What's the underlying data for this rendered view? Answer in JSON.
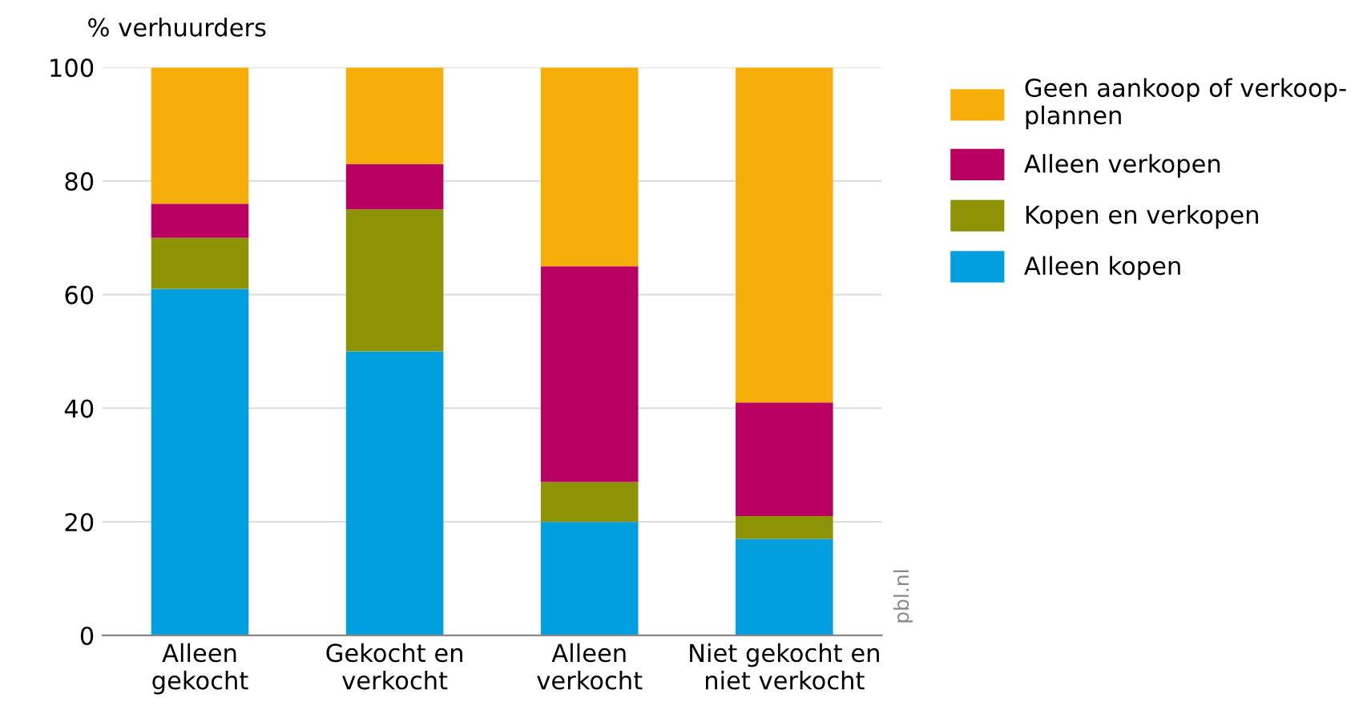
{
  "chart_data": {
    "type": "bar",
    "stacked": true,
    "ylabel": "% verhuurders",
    "categories": [
      "Alleen\ngekocht",
      "Gekocht en\nverkocht",
      "Alleen\nverkocht",
      "Niet gekocht en\nniet verkocht"
    ],
    "series": [
      {
        "name": "Alleen kopen",
        "color": "#009fe0",
        "values": [
          61,
          50,
          20,
          17
        ]
      },
      {
        "name": "Kopen en verkopen",
        "color": "#8d9304",
        "values": [
          9,
          25,
          7,
          4
        ]
      },
      {
        "name": "Alleen verkopen",
        "color": "#b90062",
        "values": [
          6,
          8,
          38,
          20
        ]
      },
      {
        "name": "Geen aankoop of verkoop-\nplannen",
        "color": "#f8ae08",
        "values": [
          24,
          17,
          35,
          59
        ]
      }
    ],
    "ylim": [
      0,
      100
    ],
    "yticks": [
      0,
      20,
      40,
      60,
      80,
      100
    ],
    "grid": "y",
    "legend": "right",
    "annotations": [
      "pbl.nl"
    ]
  }
}
